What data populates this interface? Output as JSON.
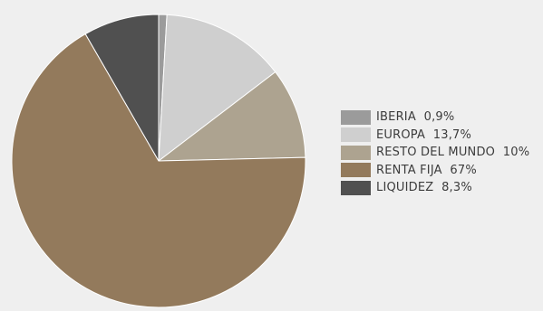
{
  "chart_data": {
    "type": "pie",
    "title": "",
    "start_angle_deg": 0,
    "direction": "clockwise",
    "slices": [
      {
        "label": "IBERIA",
        "value": 0.9,
        "display": "0,9%",
        "color": "#9b9b9b"
      },
      {
        "label": "EUROPA",
        "value": 13.7,
        "display": "13,7%",
        "color": "#cfcfcf"
      },
      {
        "label": "RESTO DEL MUNDO",
        "value": 10,
        "display": "10%",
        "color": "#ada390"
      },
      {
        "label": "RENTA FIJA",
        "value": 67,
        "display": "67%",
        "color": "#937a5c"
      },
      {
        "label": "LIQUIDEZ",
        "value": 8.3,
        "display": "8,3%",
        "color": "#505050"
      }
    ],
    "legend": {
      "position": "right"
    }
  }
}
